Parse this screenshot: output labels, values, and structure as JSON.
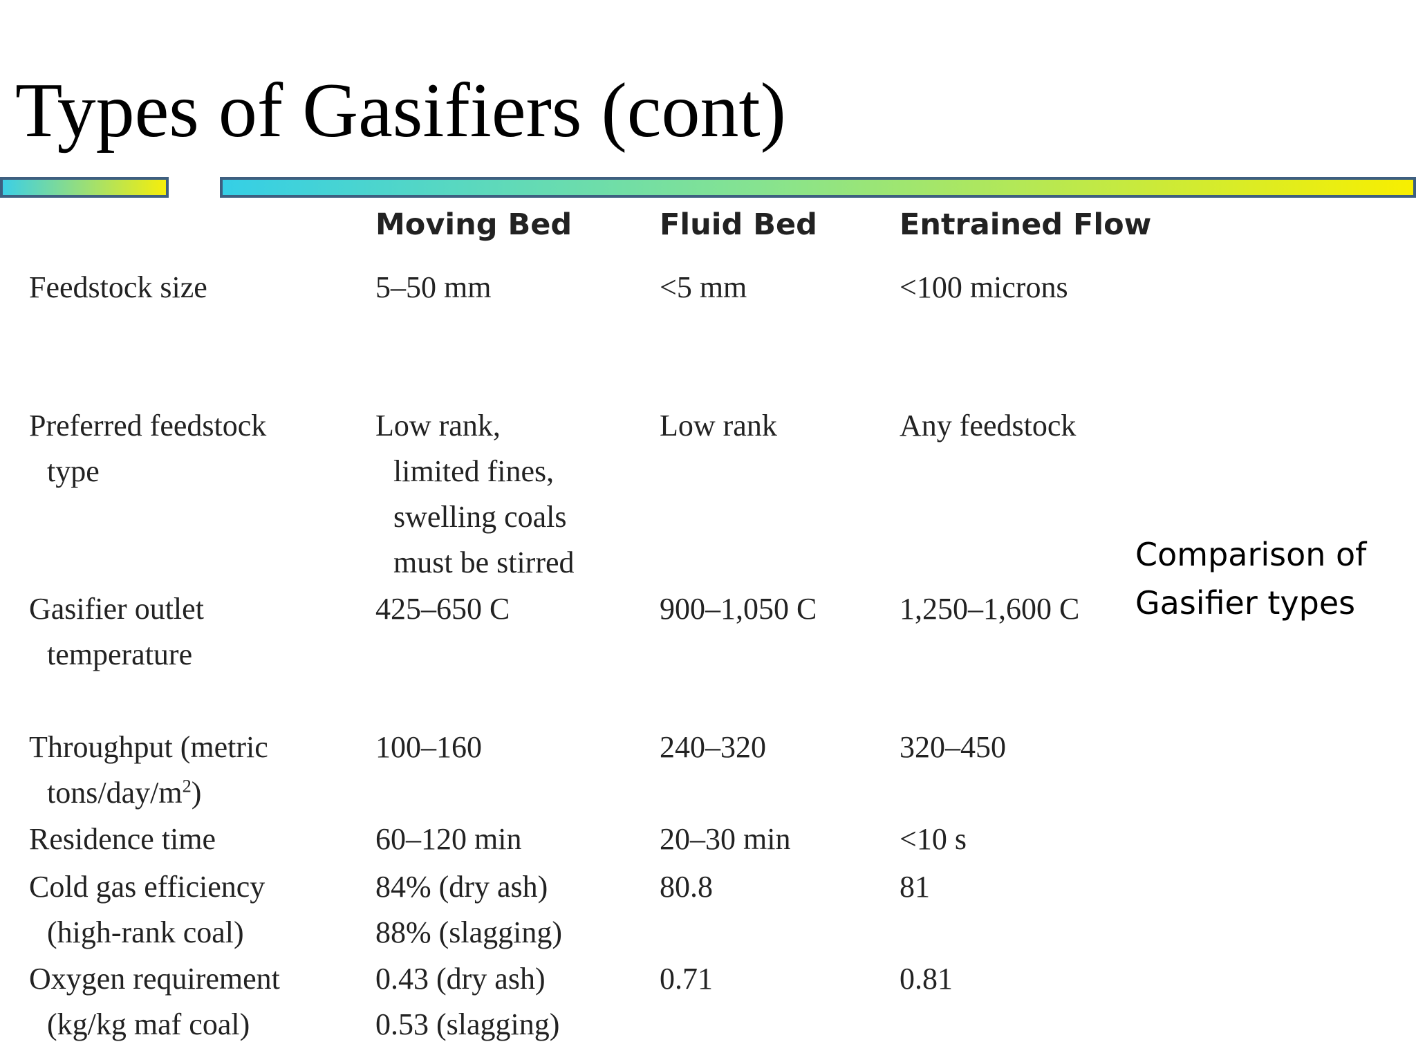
{
  "slide": {
    "title": "Types of Gasifiers (cont)",
    "note": [
      "Comparison of",
      "Gasifier types"
    ]
  },
  "table": {
    "headers": [
      "Moving Bed",
      "Fluid Bed",
      "Entrained Flow"
    ],
    "rows": [
      {
        "label": [
          "Feedstock size"
        ],
        "values": [
          [
            "5–50 mm"
          ],
          [
            "<5 mm"
          ],
          [
            "<100 microns"
          ]
        ]
      },
      {
        "label": [
          "Preferred feedstock",
          "type"
        ],
        "values": [
          [
            "Low rank,",
            "limited fines,",
            "swelling coals",
            "must be stirred"
          ],
          [
            "Low rank"
          ],
          [
            "Any feedstock"
          ]
        ]
      },
      {
        "label": [
          "Gasifier outlet",
          "temperature"
        ],
        "values": [
          [
            "425–650 C"
          ],
          [
            "900–1,050 C"
          ],
          [
            "1,250–1,600 C"
          ]
        ]
      },
      {
        "label": [
          "Throughput (metric",
          "tons/day/m",
          "2",
          ")"
        ],
        "values": [
          [
            "100–160"
          ],
          [
            "240–320"
          ],
          [
            "320–450"
          ]
        ]
      },
      {
        "label": [
          "Residence time"
        ],
        "values": [
          [
            "60–120 min"
          ],
          [
            "20–30 min"
          ],
          [
            "<10 s"
          ]
        ]
      },
      {
        "label": [
          "Cold gas efficiency",
          "(high-rank coal)"
        ],
        "values": [
          [
            "84% (dry ash)",
            "88% (slagging)"
          ],
          [
            "80.8"
          ],
          [
            "81"
          ]
        ]
      },
      {
        "label": [
          "Oxygen requirement",
          "(kg/kg maf coal)"
        ],
        "values": [
          [
            "0.43 (dry ash)",
            "0.53 (slagging)"
          ],
          [
            "0.71"
          ],
          [
            "0.81"
          ]
        ]
      }
    ]
  }
}
